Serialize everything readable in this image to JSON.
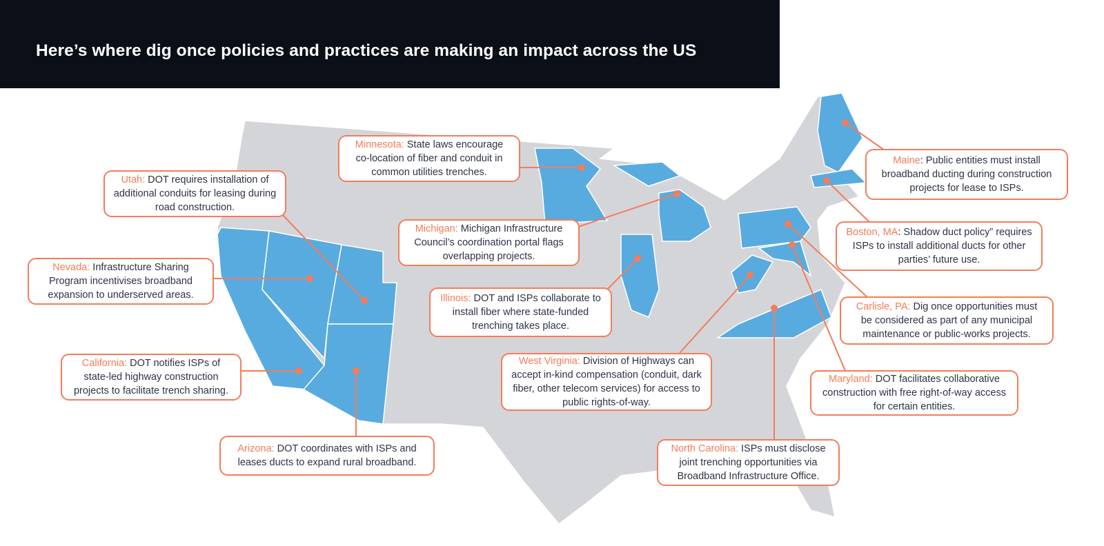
{
  "title": "Here’s where dig once policies and practices are making an impact across the US",
  "colors": {
    "header_bg": "#0b0f17",
    "accent": "#f47c5a",
    "highlight_state": "#58abdf",
    "base_state": "#d4d5d8",
    "text": "#2e3245"
  },
  "highlighted_states": [
    "California",
    "Nevada",
    "Utah",
    "Arizona",
    "Minnesota",
    "Michigan",
    "Illinois",
    "West Virginia",
    "North Carolina",
    "Maine",
    "Massachusetts",
    "Pennsylvania",
    "Maryland"
  ],
  "callouts": [
    {
      "name": "Minnesota:",
      "text": " State laws encourage co-location of fiber and conduit in common utilities trenches."
    },
    {
      "name": "Utah:",
      "text": " DOT requires installation of additional conduits for leasing during road construction."
    },
    {
      "name": "Nevada:",
      "text": " Infrastructure Sharing Program incentivises broadband expansion to underserved areas."
    },
    {
      "name": "California:",
      "text": " DOT notifies ISPs of state-led highway construction projects to facilitate trench sharing."
    },
    {
      "name": "Arizona:",
      "text": " DOT coordinates with ISPs and leases ducts to expand rural broadband."
    },
    {
      "name": "Michigan:",
      "text": " Michigan Infrastructure Council’s coordination portal flags overlapping projects."
    },
    {
      "name": "Illinois:",
      "text": " DOT and ISPs collaborate to install fiber where state-funded trenching takes place."
    },
    {
      "name": "West Virginia:",
      "text": " Division of Highways can accept in-kind compensation (conduit, dark fiber, other telecom services) for access to public rights-of-way."
    },
    {
      "name": "North Carolina:",
      "text": " ISPs must disclose joint trenching opportunities via Broadband Infrastructure Office."
    },
    {
      "name": "Maine",
      "text": ": Public entities must install broadband ducting during construction projects for lease to ISPs."
    },
    {
      "name": "Boston, MA",
      "text": ": Shadow duct policy” requires ISPs to install additional ducts for other parties’ future use."
    },
    {
      "name": "Carlisle, PA:",
      "text": " Dig once opportunities must be considered as part of any municipal maintenance or public-works projects."
    },
    {
      "name": "Maryland:",
      "text": " DOT facilitates collaborative construction with free right-of-way access for certain entities."
    }
  ]
}
